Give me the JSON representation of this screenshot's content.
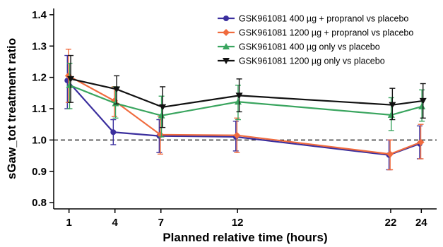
{
  "chart_data": {
    "type": "line",
    "xlabel": "Planned relative time (hours)",
    "ylabel": "sGaw_tot treatment ratio",
    "x": [
      1,
      4,
      7,
      12,
      22,
      24
    ],
    "xlim": [
      0,
      25
    ],
    "ylim": [
      0.78,
      1.42
    ],
    "xticks": [
      1,
      4,
      7,
      12,
      22,
      24
    ],
    "yticks": [
      "0.8",
      "0.9",
      "1.0",
      "1.1",
      "1.2",
      "1.3",
      "1.4"
    ],
    "reference_line": 1.0,
    "grid": false,
    "legend_position": "top-right",
    "series": [
      {
        "name": "GSK961081 400 µg + propranol vs placebo",
        "color": "#3b2f9e",
        "marker": "circle",
        "values": [
          1.19,
          1.025,
          1.013,
          1.01,
          0.952,
          0.988
        ],
        "lower": [
          1.1,
          0.985,
          0.96,
          0.965,
          0.905,
          0.94
        ],
        "upper": [
          1.27,
          1.065,
          1.065,
          1.06,
          1.0,
          1.045
        ]
      },
      {
        "name": "GSK961081 1200 µg + propranol vs placebo",
        "color": "#f06b3e",
        "marker": "diamond",
        "values": [
          1.205,
          1.125,
          1.017,
          1.015,
          0.955,
          0.993
        ],
        "lower": [
          1.12,
          1.075,
          0.955,
          0.96,
          0.905,
          0.94
        ],
        "upper": [
          1.29,
          1.17,
          1.075,
          1.07,
          1.0,
          1.05
        ]
      },
      {
        "name": "GSK961081 400 µg only vs placebo",
        "color": "#3aa55f",
        "marker": "triangle-up",
        "values": [
          1.175,
          1.117,
          1.078,
          1.122,
          1.08,
          1.107
        ],
        "lower": [
          1.1,
          1.07,
          1.01,
          1.065,
          1.03,
          1.06
        ],
        "upper": [
          1.245,
          1.17,
          1.14,
          1.175,
          1.135,
          1.16
        ]
      },
      {
        "name": "GSK961081 1200 µg only vs placebo",
        "color": "#111111",
        "marker": "triangle-down",
        "values": [
          1.195,
          1.162,
          1.105,
          1.142,
          1.112,
          1.125
        ],
        "lower": [
          1.12,
          1.115,
          1.04,
          1.09,
          1.065,
          1.07
        ],
        "upper": [
          1.27,
          1.205,
          1.17,
          1.195,
          1.165,
          1.18
        ]
      }
    ]
  }
}
